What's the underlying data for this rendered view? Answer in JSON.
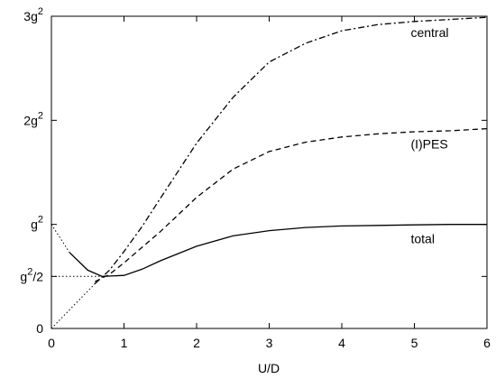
{
  "chart_data": {
    "type": "line",
    "xlabel": "U/D",
    "ylabel": "",
    "xlim": [
      0,
      6
    ],
    "ylim": [
      0,
      3
    ],
    "grid": false,
    "x_ticks": [
      0,
      1,
      2,
      3,
      4,
      5,
      6
    ],
    "x_tick_labels": [
      "0",
      "1",
      "2",
      "3",
      "4",
      "5",
      "6"
    ],
    "y_ticks": [
      {
        "value": 0,
        "base": "0",
        "sup": ""
      },
      {
        "value": 0.5,
        "base": "g",
        "sup": "2",
        "suffix": "/2"
      },
      {
        "value": 1,
        "base": "g",
        "sup": "2",
        "suffix": ""
      },
      {
        "value": 2,
        "base": "2g",
        "sup": "2",
        "suffix": ""
      },
      {
        "value": 3,
        "base": "3g",
        "sup": "2",
        "suffix": ""
      }
    ],
    "series": [
      {
        "name": "central",
        "style": "dashdot",
        "x": [
          0.6,
          0.8,
          1.0,
          1.25,
          1.5,
          2.0,
          2.5,
          3.0,
          3.5,
          4.0,
          4.5,
          5.0,
          5.5,
          6.0
        ],
        "y": [
          0.43,
          0.56,
          0.74,
          0.98,
          1.25,
          1.78,
          2.22,
          2.56,
          2.74,
          2.86,
          2.92,
          2.95,
          2.97,
          2.99
        ]
      },
      {
        "name": "(I)PES",
        "style": "dashed",
        "x": [
          0.6,
          0.8,
          1.0,
          1.25,
          1.5,
          2.0,
          2.5,
          3.0,
          3.5,
          4.0,
          4.5,
          5.0,
          5.5,
          6.0
        ],
        "y": [
          0.45,
          0.52,
          0.63,
          0.78,
          0.93,
          1.26,
          1.53,
          1.7,
          1.79,
          1.84,
          1.87,
          1.89,
          1.9,
          1.92
        ]
      },
      {
        "name": "total",
        "style": "solid",
        "x": [
          0.25,
          0.5,
          0.7,
          1.0,
          1.25,
          1.5,
          2.0,
          2.5,
          3.0,
          3.5,
          4.0,
          4.5,
          5.0,
          5.5,
          6.0
        ],
        "y": [
          0.73,
          0.56,
          0.5,
          0.51,
          0.57,
          0.65,
          0.79,
          0.89,
          0.94,
          0.97,
          0.985,
          0.99,
          0.995,
          1.0,
          1.0
        ]
      }
    ],
    "guides": [
      {
        "style": "dotted",
        "x": [
          0,
          0.25
        ],
        "y": [
          1.0,
          0.73
        ]
      },
      {
        "style": "dotted",
        "x": [
          0,
          0.6
        ],
        "y": [
          0,
          0.43
        ]
      },
      {
        "style": "dotted",
        "x": [
          0,
          0.7
        ],
        "y": [
          0.5,
          0.5
        ]
      }
    ],
    "series_labels": [
      {
        "text": "central",
        "x": 4.95,
        "y": 2.8
      },
      {
        "text": "(I)PES",
        "x": 4.95,
        "y": 1.73
      },
      {
        "text": "total",
        "x": 4.95,
        "y": 0.82
      }
    ]
  }
}
